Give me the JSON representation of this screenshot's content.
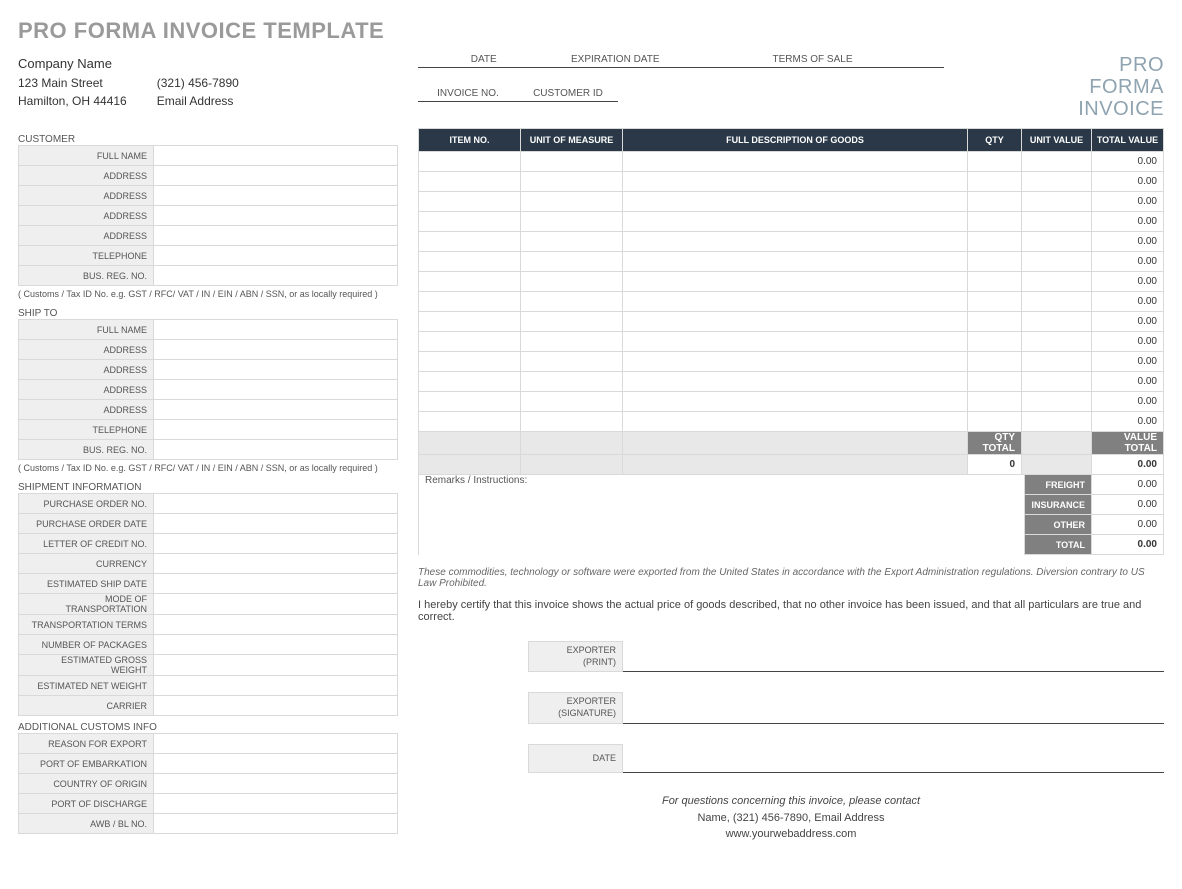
{
  "page_title": "PRO FORMA INVOICE TEMPLATE",
  "company": {
    "name": "Company Name",
    "street": "123 Main Street",
    "city_state_zip": "Hamilton, OH  44416",
    "phone": "(321) 456-7890",
    "email": "Email Address"
  },
  "meta_labels": {
    "date": "DATE",
    "expiration": "EXPIRATION DATE",
    "terms": "TERMS OF SALE",
    "invoice_no": "INVOICE NO.",
    "customer_id": "CUSTOMER ID"
  },
  "logo": {
    "l1": "PRO",
    "l2": "FORMA",
    "l3": "INVOICE"
  },
  "customer_section": "CUSTOMER",
  "customer_labels": [
    "FULL NAME",
    "ADDRESS",
    "ADDRESS",
    "ADDRESS",
    "ADDRESS",
    "TELEPHONE",
    "BUS. REG. NO."
  ],
  "customs_note": "( Customs / Tax ID No. e.g. GST / RFC/ VAT / IN / EIN / ABN / SSN, or as locally required )",
  "ship_to_section": "SHIP TO",
  "ship_to_labels": [
    "FULL NAME",
    "ADDRESS",
    "ADDRESS",
    "ADDRESS",
    "ADDRESS",
    "TELEPHONE",
    "BUS. REG. NO."
  ],
  "shipment_section": "SHIPMENT INFORMATION",
  "shipment_labels": [
    "PURCHASE ORDER NO.",
    "PURCHASE ORDER DATE",
    "LETTER OF CREDIT NO.",
    "CURRENCY",
    "ESTIMATED SHIP DATE",
    "MODE OF TRANSPORTATION",
    "TRANSPORTATION TERMS",
    "NUMBER OF PACKAGES",
    "ESTIMATED GROSS WEIGHT",
    "ESTIMATED NET WEIGHT",
    "CARRIER"
  ],
  "additional_section": "ADDITIONAL CUSTOMS INFO",
  "additional_labels": [
    "REASON FOR EXPORT",
    "PORT OF EMBARKATION",
    "COUNTRY OF ORIGIN",
    "PORT OF DISCHARGE",
    "AWB / BL NO."
  ],
  "items_header": {
    "item_no": "ITEM NO.",
    "uom": "UNIT OF MEASURE",
    "desc": "FULL DESCRIPTION OF GOODS",
    "qty": "QTY",
    "unit_value": "UNIT VALUE",
    "total_value": "TOTAL VALUE"
  },
  "item_rows": [
    {
      "total": "0.00"
    },
    {
      "total": "0.00"
    },
    {
      "total": "0.00"
    },
    {
      "total": "0.00"
    },
    {
      "total": "0.00"
    },
    {
      "total": "0.00"
    },
    {
      "total": "0.00"
    },
    {
      "total": "0.00"
    },
    {
      "total": "0.00"
    },
    {
      "total": "0.00"
    },
    {
      "total": "0.00"
    },
    {
      "total": "0.00"
    },
    {
      "total": "0.00"
    },
    {
      "total": "0.00"
    }
  ],
  "totals": {
    "qty_total_label": "QTY TOTAL",
    "value_total_label": "VALUE TOTAL",
    "qty_total": "0",
    "value_total": "0.00"
  },
  "remarks_label": "Remarks / Instructions:",
  "extras": {
    "freight_label": "FREIGHT",
    "freight": "0.00",
    "insurance_label": "INSURANCE",
    "insurance": "0.00",
    "other_label": "OTHER",
    "other": "0.00",
    "total_label": "TOTAL",
    "total": "0.00"
  },
  "disclosure": "These commodities, technology or software were exported from the United States in accordance with the Export Administration regulations.  Diversion contrary to US Law Prohibited.",
  "cert": "I hereby certify that this invoice shows the actual price of goods described, that no other invoice has been issued, and that all particulars are true and correct.",
  "sig": {
    "exporter": "EXPORTER",
    "print": "(PRINT)",
    "signature": "(SIGNATURE)",
    "date": "DATE"
  },
  "contact": {
    "q": "For questions concerning this invoice, please contact",
    "line": "Name, (321) 456-7890, Email Address",
    "web": "www.yourwebaddress.com"
  },
  "colors": {
    "header_bg": "#2a3847",
    "label_bg": "#efefef",
    "border": "#d9d9d9",
    "totals_bg": "#808080",
    "logo_color": "#8fa3b0",
    "title_color": "#9a9a9a"
  }
}
